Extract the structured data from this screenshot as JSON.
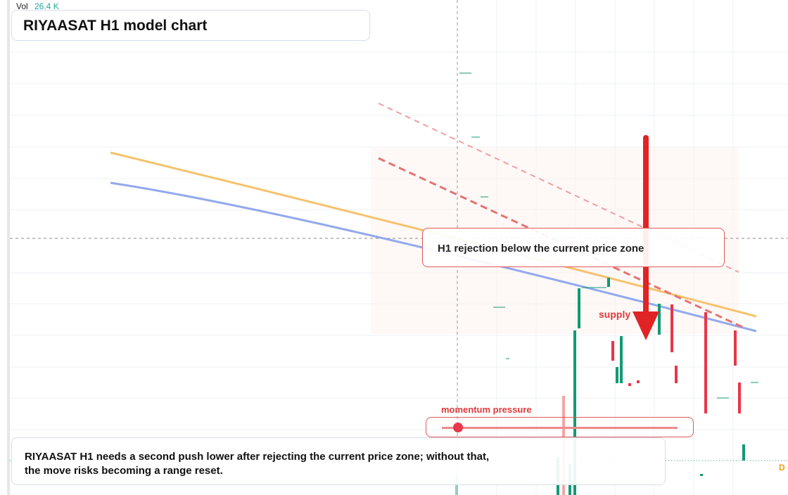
{
  "legend": {
    "label": "Vol",
    "value": "26.4 K"
  },
  "header": {
    "title": "RIYAASAT H1 model chart"
  },
  "annotations": {
    "callout": "H1 rejection below the current price zone",
    "zone": "supply",
    "momentum": "momentum pressure",
    "edge_label": "D"
  },
  "note": {
    "lines": [
      "RIYAASAT H1 needs a second push lower after rejecting the current price zone; without that,",
      "the move risks becoming a range reset."
    ]
  }
}
